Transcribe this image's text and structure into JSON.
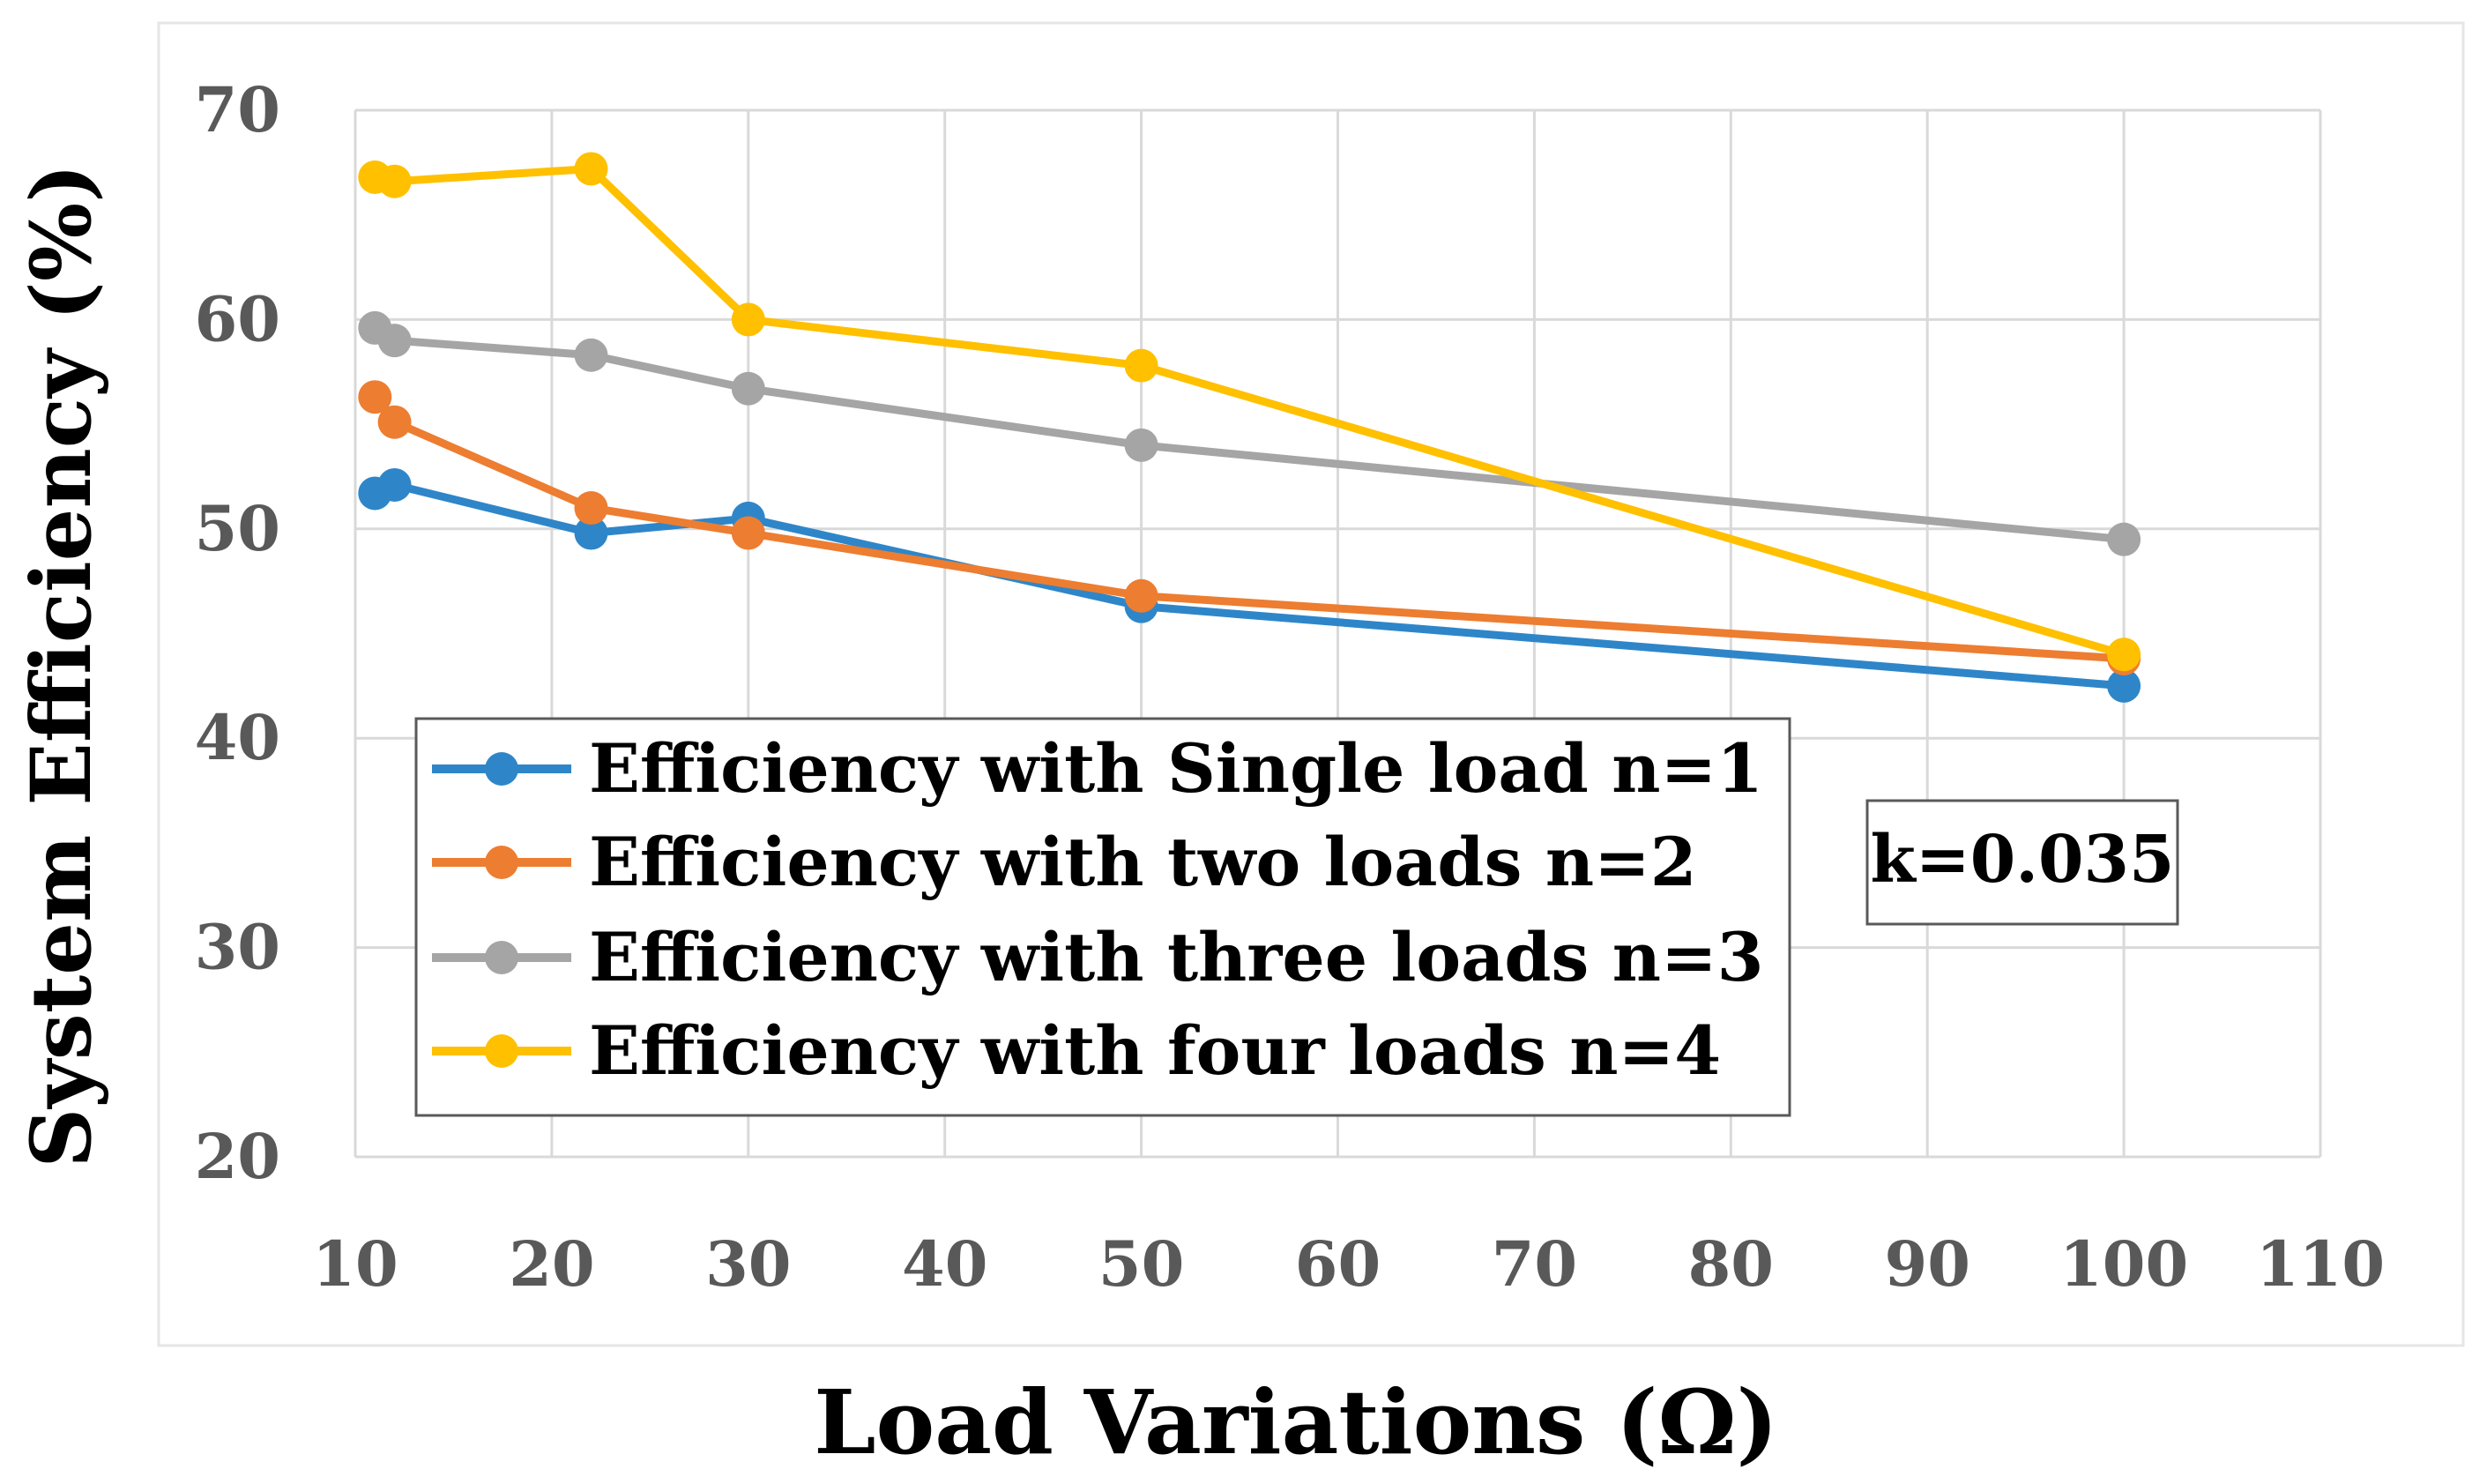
{
  "chart_data": {
    "type": "line",
    "title": "",
    "xlabel": "Load Variations (Ω)",
    "ylabel": "System Efficiency (%)",
    "xlim": [
      10,
      110
    ],
    "ylim": [
      20,
      70
    ],
    "xticks": [
      10,
      20,
      30,
      40,
      50,
      60,
      70,
      80,
      90,
      100,
      110
    ],
    "yticks": [
      20,
      30,
      40,
      50,
      60,
      70
    ],
    "grid": true,
    "legend_position": "bottom-left",
    "annotation": "k=0.035",
    "series": [
      {
        "name": "Efficiency with Single load n=1",
        "color": "#2e86c9",
        "x": [
          11,
          12,
          22,
          30,
          50,
          100
        ],
        "y": [
          51.7,
          52.1,
          49.8,
          50.5,
          46.3,
          42.5
        ]
      },
      {
        "name": "Efficiency with two loads n=2",
        "color": "#ed7d31",
        "x": [
          11,
          12,
          22,
          30,
          50,
          100
        ],
        "y": [
          56.3,
          55.1,
          51.0,
          49.8,
          46.8,
          43.8
        ]
      },
      {
        "name": "Efficiency with three loads n=3",
        "color": "#a5a5a5",
        "x": [
          11,
          12,
          22,
          30,
          50,
          100
        ],
        "y": [
          59.6,
          59.0,
          58.3,
          56.7,
          54.0,
          49.5
        ]
      },
      {
        "name": "Efficiency with four loads n=4",
        "color": "#ffc000",
        "x": [
          11,
          12,
          22,
          30,
          50,
          100
        ],
        "y": [
          66.8,
          66.6,
          67.2,
          60.0,
          57.8,
          44.0
        ]
      }
    ]
  }
}
